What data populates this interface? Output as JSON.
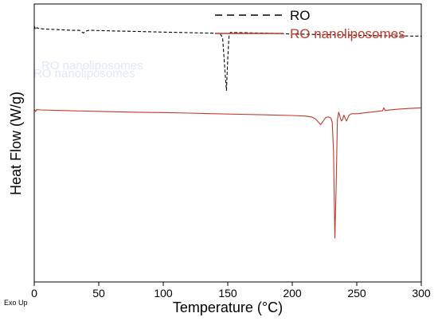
{
  "chart_data": {
    "type": "line",
    "xlabel": "Temperature (°C)",
    "ylabel": "Heat Flow (W/g)",
    "corner_note": "Exo Up",
    "xlim": [
      0,
      300
    ],
    "xticks": [
      0,
      50,
      100,
      150,
      200,
      250,
      300
    ],
    "y_tick_labels": false,
    "grid": false,
    "legend": {
      "placement": "top-right"
    },
    "watermark": [
      "RO nanoliposomes",
      "RO nanoliposomes"
    ],
    "series": [
      {
        "name": "RO",
        "color": "#000000",
        "line_style": "dashed",
        "x": [
          0,
          1,
          2,
          4,
          10,
          20,
          30,
          35,
          38,
          40,
          42,
          45,
          60,
          80,
          100,
          120,
          140,
          144,
          146,
          147,
          148,
          149,
          150,
          151,
          152,
          160,
          180,
          200,
          230,
          260,
          300
        ],
        "y": [
          0.0,
          -0.25,
          -0.12,
          -0.18,
          -0.22,
          -0.26,
          -0.3,
          -0.3,
          -0.48,
          -0.36,
          -0.3,
          -0.3,
          -0.34,
          -0.38,
          -0.42,
          -0.46,
          -0.5,
          -0.52,
          -0.8,
          -2.0,
          -3.3,
          -4.4,
          -2.2,
          -0.7,
          -0.45,
          -0.46,
          -0.5,
          -0.55,
          -0.6,
          -0.66,
          -0.7
        ]
      },
      {
        "name": "RO nanoliposomes",
        "color": "#c0392b",
        "line_style": "solid",
        "x": [
          0,
          1,
          2,
          5,
          20,
          40,
          60,
          80,
          100,
          120,
          140,
          160,
          180,
          200,
          210,
          215,
          218,
          220,
          222,
          224,
          226,
          228,
          230,
          231,
          232,
          233,
          234,
          235,
          236,
          237,
          238,
          239,
          240,
          241,
          242,
          243,
          244,
          246,
          250,
          260,
          270,
          271,
          272,
          280,
          290,
          300
        ],
        "y": [
          -5.65,
          -5.85,
          -5.72,
          -5.74,
          -5.78,
          -5.82,
          -5.86,
          -5.9,
          -5.92,
          -5.96,
          -6.0,
          -6.04,
          -6.08,
          -6.12,
          -6.16,
          -6.22,
          -6.35,
          -6.55,
          -6.75,
          -6.5,
          -6.25,
          -6.22,
          -6.3,
          -6.6,
          -8.5,
          -14.5,
          -11.0,
          -6.4,
          -5.9,
          -6.2,
          -6.5,
          -6.4,
          -6.1,
          -6.3,
          -6.5,
          -6.3,
          -6.1,
          -6.0,
          -6.0,
          -5.9,
          -5.8,
          -5.6,
          -5.78,
          -5.7,
          -5.64,
          -5.6
        ]
      }
    ]
  }
}
